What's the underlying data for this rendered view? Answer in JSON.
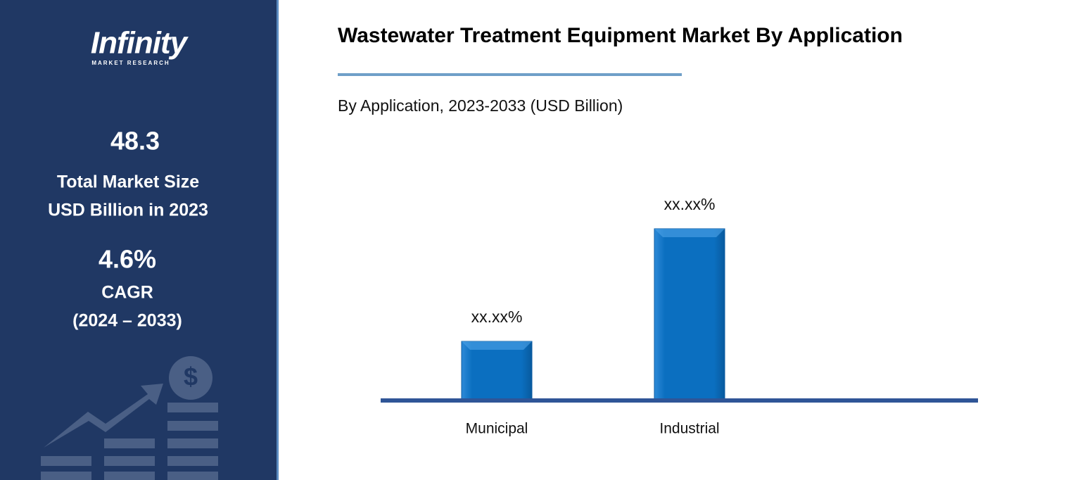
{
  "sidebar": {
    "logo": "Infinity",
    "logo_sub": "MARKET RESEARCH",
    "market_size": "48.3",
    "market_size_label_1": "Total Market Size",
    "market_size_label_2": "USD Billion in 2023",
    "cagr": "4.6%",
    "cagr_label": "CAGR",
    "cagr_period": "(2024 – 2033)"
  },
  "chart_data": {
    "type": "bar",
    "title": "Wastewater Treatment Equipment Market By Application",
    "subtitle": "By Application, 2023-2033 (USD Billion)",
    "categories": [
      "Municipal",
      "Industrial"
    ],
    "values": [
      25.3,
      74.7
    ],
    "value_labels": [
      "xx.xx%",
      "xx.xx%"
    ],
    "color": "#0b6fc0"
  }
}
